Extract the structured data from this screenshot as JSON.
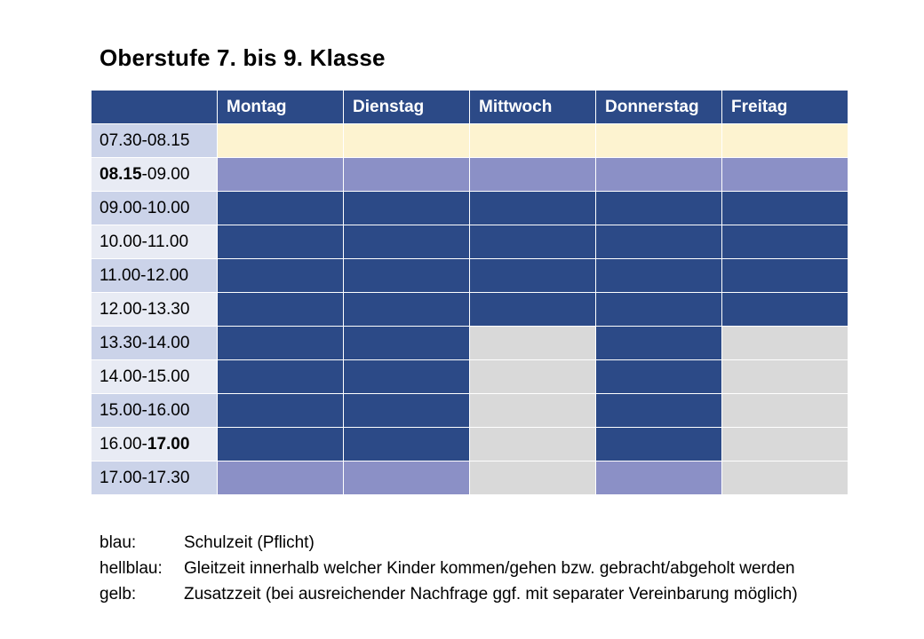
{
  "title": "Oberstufe 7. bis 9. Klasse",
  "colors": {
    "yellow": "#fdf3d0",
    "lightblue": "#8b90c6",
    "blue": "#2c4a87",
    "gray": "#d9d9d9",
    "time_col_odd": "#cbd3e9",
    "time_col_even": "#e8ebf4"
  },
  "table": {
    "corner": "",
    "days": [
      "Montag",
      "Dienstag",
      "Mittwoch",
      "Donnerstag",
      "Freitag"
    ],
    "rows": [
      {
        "time_bold": "",
        "time_rest": "07.30-08.15",
        "time_bold_end": "",
        "cells": [
          "yellow",
          "yellow",
          "yellow",
          "yellow",
          "yellow"
        ]
      },
      {
        "time_bold": "08.15",
        "time_rest": "-09.00",
        "time_bold_end": "",
        "cells": [
          "lightblue",
          "lightblue",
          "lightblue",
          "lightblue",
          "lightblue"
        ]
      },
      {
        "time_bold": "",
        "time_rest": "09.00-10.00",
        "time_bold_end": "",
        "cells": [
          "blue",
          "blue",
          "blue",
          "blue",
          "blue"
        ]
      },
      {
        "time_bold": "",
        "time_rest": "10.00-11.00",
        "time_bold_end": "",
        "cells": [
          "blue",
          "blue",
          "blue",
          "blue",
          "blue"
        ]
      },
      {
        "time_bold": "",
        "time_rest": "11.00-12.00",
        "time_bold_end": "",
        "cells": [
          "blue",
          "blue",
          "blue",
          "blue",
          "blue"
        ]
      },
      {
        "time_bold": "",
        "time_rest": "12.00-13.30",
        "time_bold_end": "",
        "cells": [
          "blue",
          "blue",
          "blue",
          "blue",
          "blue"
        ]
      },
      {
        "time_bold": "",
        "time_rest": "13.30-14.00",
        "time_bold_end": "",
        "cells": [
          "blue",
          "blue",
          "gray",
          "blue",
          "gray"
        ]
      },
      {
        "time_bold": "",
        "time_rest": "14.00-15.00",
        "time_bold_end": "",
        "cells": [
          "blue",
          "blue",
          "gray",
          "blue",
          "gray"
        ]
      },
      {
        "time_bold": "",
        "time_rest": "15.00-16.00",
        "time_bold_end": "",
        "cells": [
          "blue",
          "blue",
          "gray",
          "blue",
          "gray"
        ]
      },
      {
        "time_bold": "",
        "time_rest": "16.00-",
        "time_bold_end": "17.00",
        "cells": [
          "blue",
          "blue",
          "gray",
          "blue",
          "gray"
        ]
      },
      {
        "time_bold": "",
        "time_rest": "17.00-17.30",
        "time_bold_end": "",
        "cells": [
          "lightblue",
          "lightblue",
          "gray",
          "lightblue",
          "gray"
        ]
      }
    ]
  },
  "legend": [
    {
      "key": "blau:",
      "text": "Schulzeit (Pflicht)"
    },
    {
      "key": "hellblau:",
      "text": "Gleitzeit innerhalb welcher Kinder kommen/gehen bzw. gebracht/abgeholt werden"
    },
    {
      "key": "gelb:",
      "text": "Zusatzzeit (bei ausreichender Nachfrage ggf. mit separater Vereinbarung möglich)"
    }
  ]
}
